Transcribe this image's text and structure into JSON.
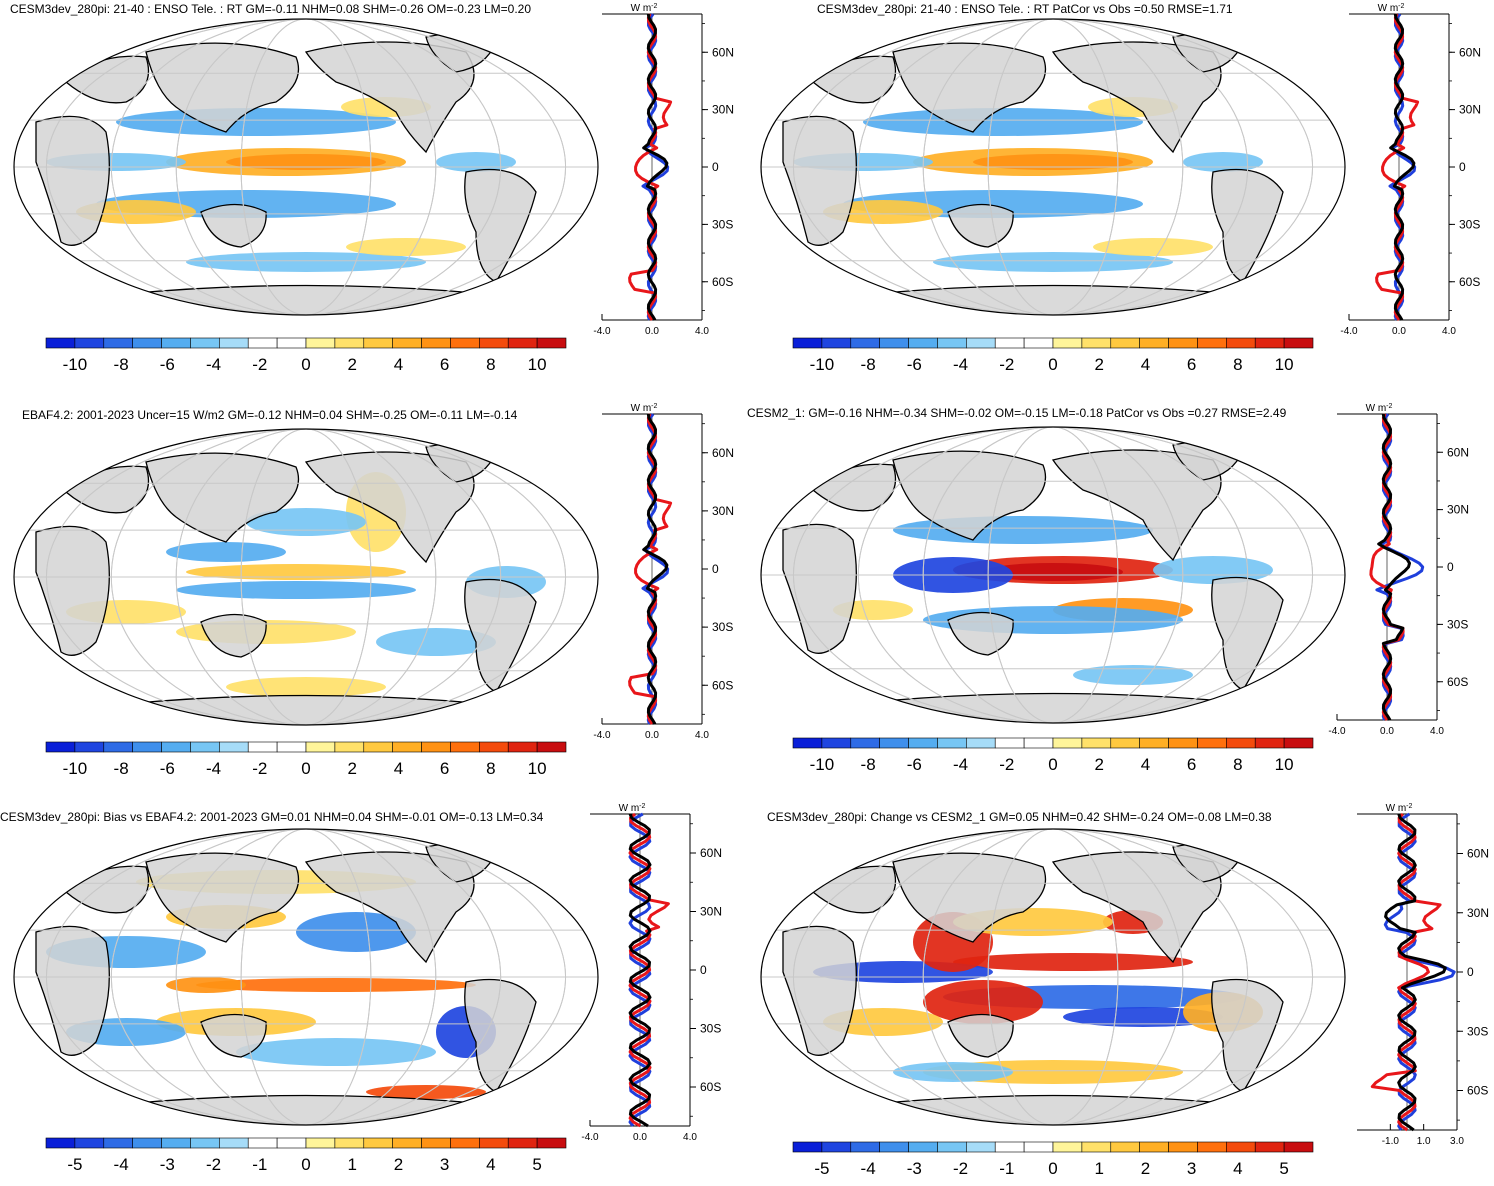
{
  "colors": {
    "land": "#d3d3d3",
    "grid": "#c8c8c8",
    "blue_line": "#1f3fdc",
    "red_line": "#e8161a",
    "black_line": "#000000",
    "palette": [
      "#0a1fd8",
      "#1f45e0",
      "#2e6be6",
      "#3f8fec",
      "#55adf0",
      "#77c6f4",
      "#a6dcf8",
      "#ffffff",
      "#ffffff",
      "#fff59a",
      "#ffe16a",
      "#ffc940",
      "#ffaf25",
      "#ff9214",
      "#ff700d",
      "#f44b0c",
      "#e02410",
      "#c80d10"
    ]
  },
  "units_label": "W m",
  "units_exp": "-2",
  "lat_ticks": [
    "60N",
    "30N",
    "0",
    "30S",
    "60S"
  ],
  "chart_data": [
    {
      "id": "p1",
      "type": "heatmap",
      "title": "CESM3dev_280pi: 21-40 : ENSO Tele. : RT GM=-0.11 NHM=0.08 SHM=-0.26 OM=-0.23 LM=0.20",
      "colorbar_labels": [
        "-10",
        "-8",
        "-6",
        "-4",
        "-2",
        "0",
        "2",
        "4",
        "6",
        "8",
        "10"
      ],
      "zonal_xticks": [
        "-4.0",
        "0.0",
        "4.0"
      ],
      "zonal_xlim": [
        -4,
        4
      ],
      "pattern": "enso"
    },
    {
      "id": "p2",
      "type": "heatmap",
      "title": "CESM3dev_280pi: 21-40 : ENSO Tele. : RT PatCor vs Obs =0.50 RMSE=1.71",
      "colorbar_labels": [
        "-10",
        "-8",
        "-6",
        "-4",
        "-2",
        "0",
        "2",
        "4",
        "6",
        "8",
        "10"
      ],
      "zonal_xticks": [
        "-4.0",
        "0.0",
        "4.0"
      ],
      "zonal_xlim": [
        -4,
        4
      ],
      "pattern": "enso"
    },
    {
      "id": "p3",
      "type": "heatmap",
      "title": "EBAF4.2: 2001-2023 Uncer=15 W/m2 GM=-0.12 NHM=0.04 SHM=-0.25 OM=-0.11 LM=-0.14",
      "colorbar_labels": [
        "-10",
        "-8",
        "-6",
        "-4",
        "-2",
        "0",
        "2",
        "4",
        "6",
        "8",
        "10"
      ],
      "zonal_xticks": [
        "-4.0",
        "0.0",
        "4.0"
      ],
      "zonal_xlim": [
        -4,
        4
      ],
      "pattern": "obs"
    },
    {
      "id": "p4",
      "type": "heatmap",
      "title": "CESM2_1: GM=-0.16 NHM=-0.34 SHM=-0.02 OM=-0.15 LM=-0.18 PatCor vs Obs =0.27 RMSE=2.49",
      "colorbar_labels": [
        "-10",
        "-8",
        "-6",
        "-4",
        "-2",
        "0",
        "2",
        "4",
        "6",
        "8",
        "10"
      ],
      "zonal_xticks": [
        "-4.0",
        "0.0",
        "4.0"
      ],
      "zonal_xlim": [
        -4,
        4
      ],
      "pattern": "cesm2"
    },
    {
      "id": "p5",
      "type": "heatmap",
      "title": "CESM3dev_280pi: Bias vs EBAF4.2: 2001-2023 GM=0.01 NHM=0.04 SHM=-0.01 OM=-0.13 LM=0.34",
      "colorbar_labels": [
        "-5",
        "-4",
        "-3",
        "-2",
        "-1",
        "0",
        "1",
        "2",
        "3",
        "4",
        "5"
      ],
      "zonal_xticks": [
        "-4.0",
        "0.0",
        "4.0"
      ],
      "zonal_xlim": [
        -4,
        4
      ],
      "pattern": "bias"
    },
    {
      "id": "p6",
      "type": "heatmap",
      "title": "CESM3dev_280pi: Change vs CESM2_1 GM=0.05 NHM=0.42 SHM=-0.24 OM=-0.08 LM=0.38",
      "colorbar_labels": [
        "-5",
        "-4",
        "-3",
        "-2",
        "-1",
        "0",
        "1",
        "2",
        "3",
        "4",
        "5"
      ],
      "zonal_xticks": [
        "-1.0",
        "1.0",
        "3.0"
      ],
      "zonal_xlim": [
        -3,
        3
      ],
      "pattern": "change"
    }
  ]
}
